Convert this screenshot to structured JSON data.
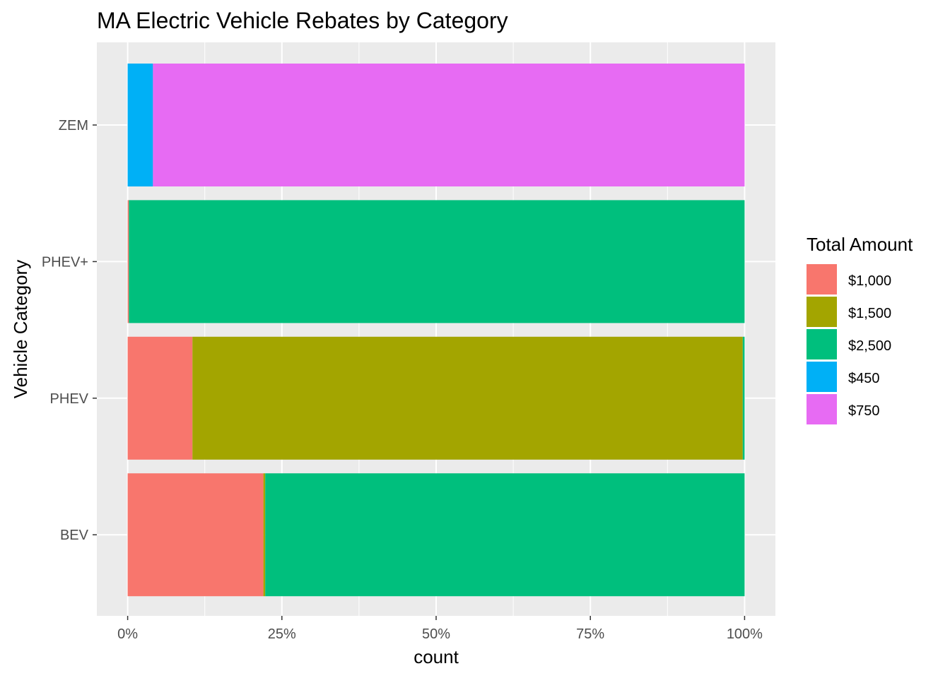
{
  "chart_data": {
    "type": "bar",
    "orientation": "horizontal",
    "stacked": "fill",
    "title": "MA Electric Vehicle Rebates by Category",
    "xlabel": "count",
    "ylabel": "Vehicle Category",
    "xlim": [
      0,
      1
    ],
    "x_ticks": [
      "0%",
      "25%",
      "50%",
      "75%",
      "100%"
    ],
    "grid": true,
    "legend_title": "Total Amount",
    "legend_position": "right",
    "categories": [
      "ZEM",
      "PHEV+",
      "PHEV",
      "BEV"
    ],
    "series": [
      {
        "name": "$1,000",
        "color": "#F8766D",
        "values": [
          0.0,
          0.002,
          0.105,
          0.22
        ]
      },
      {
        "name": "$1,500",
        "color": "#A3A500",
        "values": [
          0.0,
          0.0,
          0.892,
          0.003
        ]
      },
      {
        "name": "$2,500",
        "color": "#00BF7D",
        "values": [
          0.0,
          0.998,
          0.003,
          0.777
        ]
      },
      {
        "name": "$450",
        "color": "#00B0F6",
        "values": [
          0.041,
          0.0,
          0.0,
          0.0
        ]
      },
      {
        "name": "$750",
        "color": "#E76BF3",
        "values": [
          0.959,
          0.0,
          0.0,
          0.0
        ]
      }
    ]
  }
}
